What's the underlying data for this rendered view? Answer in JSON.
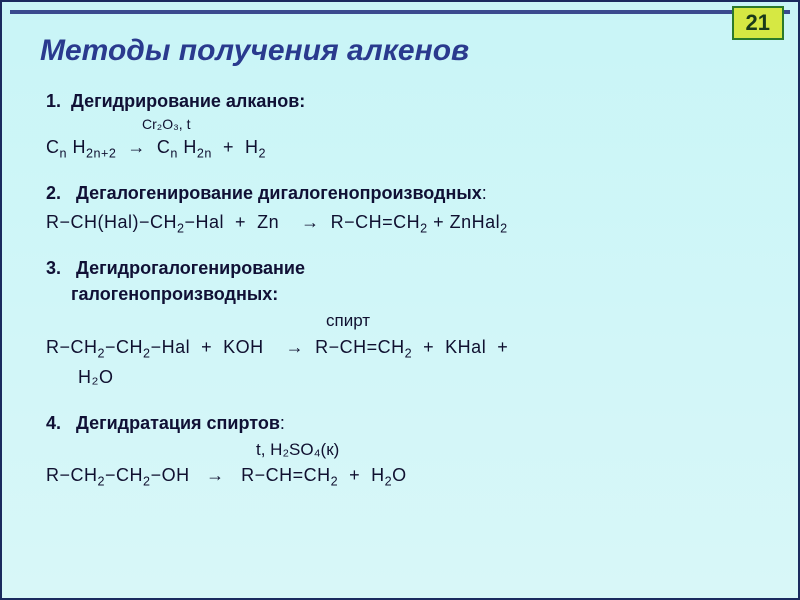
{
  "page_number": "21",
  "title": "Методы получения алкенов",
  "colors": {
    "background_top": "#c9f5f7",
    "background_bottom": "#d8f7f8",
    "border": "#1a2a5e",
    "title": "#2a3a8e",
    "text": "#101030",
    "badge_bg": "#d6e843",
    "badge_border": "#2b7a2b"
  },
  "typography": {
    "title_fontsize": 30,
    "body_fontsize": 18,
    "catalyst_fontsize": 14
  },
  "sections": [
    {
      "num": "1.",
      "heading": "Дегидрирование алканов:",
      "catalyst": "Cr₂O₃, t",
      "formula_html": "C<sub>n</sub> H<sub>2n+2</sub>  &nbsp;→&nbsp;  C<sub>n</sub> H<sub>2n</sub>  &nbsp;+&nbsp;  H<sub>2</sub>"
    },
    {
      "num": "2.",
      "heading": "Дегалогенирование дигалогенопроизводных",
      "formula_html": " R−CH(Hal)−CH<sub>2</sub>−Hal&nbsp;&nbsp;+&nbsp;&nbsp;Zn&nbsp;&nbsp;&nbsp;&nbsp;→&nbsp;&nbsp;R−CH=CH<sub>2</sub>&nbsp;+&nbsp;ZnHal<sub>2</sub>"
    },
    {
      "num": "3.",
      "heading": "Дегидрогалогенирование галогенопроизводных:",
      "catalyst": "спирт",
      "formula_html": "R−CH<sub>2</sub>−CH<sub>2</sub>−Hal &nbsp;+&nbsp; KOH &nbsp;&nbsp;&nbsp;→ &nbsp;R−CH=CH<sub>2</sub> &nbsp;+&nbsp; KHal &nbsp;+",
      "formula_cont": "H₂O"
    },
    {
      "num": "4.",
      "heading": "Дегидратация спиртов",
      "catalyst": "t, H₂SO₄(к)",
      "formula_html": "R−CH<sub>2</sub>−CH<sub>2</sub>−OH &nbsp;&nbsp;→&nbsp;&nbsp; R−CH=CH<sub>2</sub> &nbsp;+&nbsp; H<sub>2</sub>O"
    }
  ]
}
